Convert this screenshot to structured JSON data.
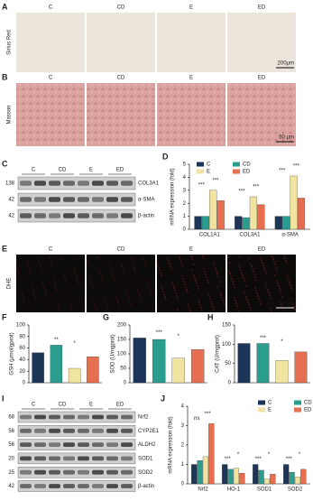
{
  "groups": [
    "C",
    "CD",
    "E",
    "ED"
  ],
  "panel_A": {
    "label": "A",
    "row_label": "Sirius Red",
    "scale": "200μm"
  },
  "panel_B": {
    "label": "B",
    "row_label": "Masson",
    "scale": "50 μm"
  },
  "panel_C": {
    "label": "C",
    "rows": [
      {
        "name": "COL3A1",
        "mw": 138
      },
      {
        "name": "α-SMA",
        "mw": 42
      },
      {
        "name": "β-actin",
        "mw": 42
      }
    ]
  },
  "panel_E": {
    "label": "E",
    "row_label": "DHE",
    "scale": "50 μm"
  },
  "panel_I": {
    "label": "I",
    "rows": [
      {
        "name": "Nrf2",
        "mw": 68
      },
      {
        "name": "CYP2E1",
        "mw": 56
      },
      {
        "name": "ALDH2",
        "mw": 56
      },
      {
        "name": "SOD1",
        "mw": 20
      },
      {
        "name": "SOD2",
        "mw": 25
      },
      {
        "name": "β-actin",
        "mw": 42
      }
    ]
  },
  "chart_data": [
    {
      "type": "grouped-bar",
      "label": "D",
      "y_label": "mRNA expression (fold)",
      "categories": [
        "COL1A1",
        "COL3A1",
        "α-SMA"
      ],
      "series": [
        {
          "name": "C",
          "color": "#1d3557",
          "values": [
            1,
            1,
            1
          ]
        },
        {
          "name": "CD",
          "color": "#2a9d8f",
          "values": [
            1,
            0.9,
            1
          ]
        },
        {
          "name": "E",
          "color": "#f1e3a0",
          "values": [
            3.0,
            2.5,
            4.1
          ]
        },
        {
          "name": "ED",
          "color": "#e76f51",
          "values": [
            2.2,
            1.9,
            2.4
          ]
        }
      ],
      "ylim": [
        0,
        5
      ],
      "yticks": [
        0,
        1,
        2,
        3,
        4,
        5
      ],
      "annotations": [
        [
          "***",
          "***"
        ],
        [
          "***",
          "***"
        ],
        [
          "***",
          "***"
        ]
      ]
    },
    {
      "type": "bar",
      "label": "F",
      "y_label": "GSH (μmol/gprot)",
      "values": [
        52,
        65,
        25,
        45
      ],
      "colors": [
        "#1d3557",
        "#2a9d8f",
        "#f1e3a0",
        "#e76f51"
      ],
      "ylim": [
        0,
        100
      ],
      "yticks": [
        0,
        20,
        40,
        60,
        80,
        100
      ],
      "annotations": [
        "**",
        "*"
      ]
    },
    {
      "type": "bar",
      "label": "G",
      "y_label": "SOD (U/mgprot)",
      "values": [
        155,
        150,
        85,
        115
      ],
      "colors": [
        "#1d3557",
        "#2a9d8f",
        "#f1e3a0",
        "#e76f51"
      ],
      "ylim": [
        0,
        200
      ],
      "yticks": [
        0,
        50,
        100,
        150,
        200
      ],
      "annotations": [
        "***",
        "*"
      ]
    },
    {
      "type": "bar",
      "label": "H",
      "y_label": "CAT (U/mgprot)",
      "values": [
        102,
        102,
        58,
        80
      ],
      "colors": [
        "#1d3557",
        "#2a9d8f",
        "#f1e3a0",
        "#e76f51"
      ],
      "ylim": [
        0,
        150
      ],
      "yticks": [
        0,
        50,
        100,
        150
      ],
      "annotations": [
        "***",
        "*"
      ]
    },
    {
      "type": "grouped-bar",
      "label": "J",
      "y_label": "mRNA expression (fold)",
      "categories": [
        "Nrf2",
        "HO-1",
        "SOD1",
        "SOD2"
      ],
      "series": [
        {
          "name": "C",
          "color": "#1d3557",
          "values": [
            1,
            1,
            1,
            1
          ]
        },
        {
          "name": "CD",
          "color": "#2a9d8f",
          "values": [
            1.2,
            0.75,
            0.7,
            0.6
          ]
        },
        {
          "name": "E",
          "color": "#f1e3a0",
          "values": [
            1.4,
            0.8,
            0.25,
            0.35
          ]
        },
        {
          "name": "ED",
          "color": "#e76f51",
          "values": [
            3.1,
            0.55,
            0.5,
            0.75
          ]
        }
      ],
      "ylim": [
        0,
        4
      ],
      "yticks": [
        0,
        1,
        2,
        3,
        4
      ],
      "annotations": [
        [
          "ns",
          "***"
        ],
        [
          "***",
          "*"
        ],
        [
          "***",
          "*"
        ],
        [
          "***",
          "*"
        ]
      ]
    }
  ]
}
